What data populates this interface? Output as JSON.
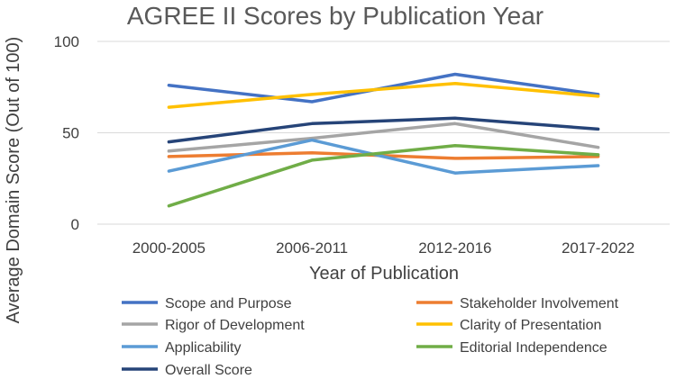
{
  "chart_data": {
    "type": "line",
    "title": "AGREE II Scores by Publication Year",
    "xlabel": "Year of Publication",
    "ylabel": "Average Domain Score (Out of 100)",
    "categories": [
      "2000-2005",
      "2006-2011",
      "2012-2016",
      "2017-2022"
    ],
    "ylim": [
      0,
      100
    ],
    "yticks": [
      0,
      50,
      100
    ],
    "grid": true,
    "legend_position": "bottom",
    "series": [
      {
        "name": "Scope and Purpose",
        "color": "#4472C4",
        "values": [
          76,
          67,
          82,
          71
        ]
      },
      {
        "name": "Stakeholder Involvement",
        "color": "#ED7D31",
        "values": [
          37,
          39,
          36,
          37
        ]
      },
      {
        "name": "Rigor of Development",
        "color": "#A5A5A5",
        "values": [
          40,
          47,
          55,
          42
        ]
      },
      {
        "name": "Clarity of Presentation",
        "color": "#FFC000",
        "values": [
          64,
          71,
          77,
          70
        ]
      },
      {
        "name": "Applicability",
        "color": "#5B9BD5",
        "values": [
          29,
          46,
          28,
          32
        ]
      },
      {
        "name": "Editorial Independence",
        "color": "#70AD47",
        "values": [
          10,
          35,
          43,
          38
        ]
      },
      {
        "name": "Overall Score",
        "color": "#264478",
        "values": [
          45,
          55,
          58,
          52
        ]
      }
    ]
  }
}
